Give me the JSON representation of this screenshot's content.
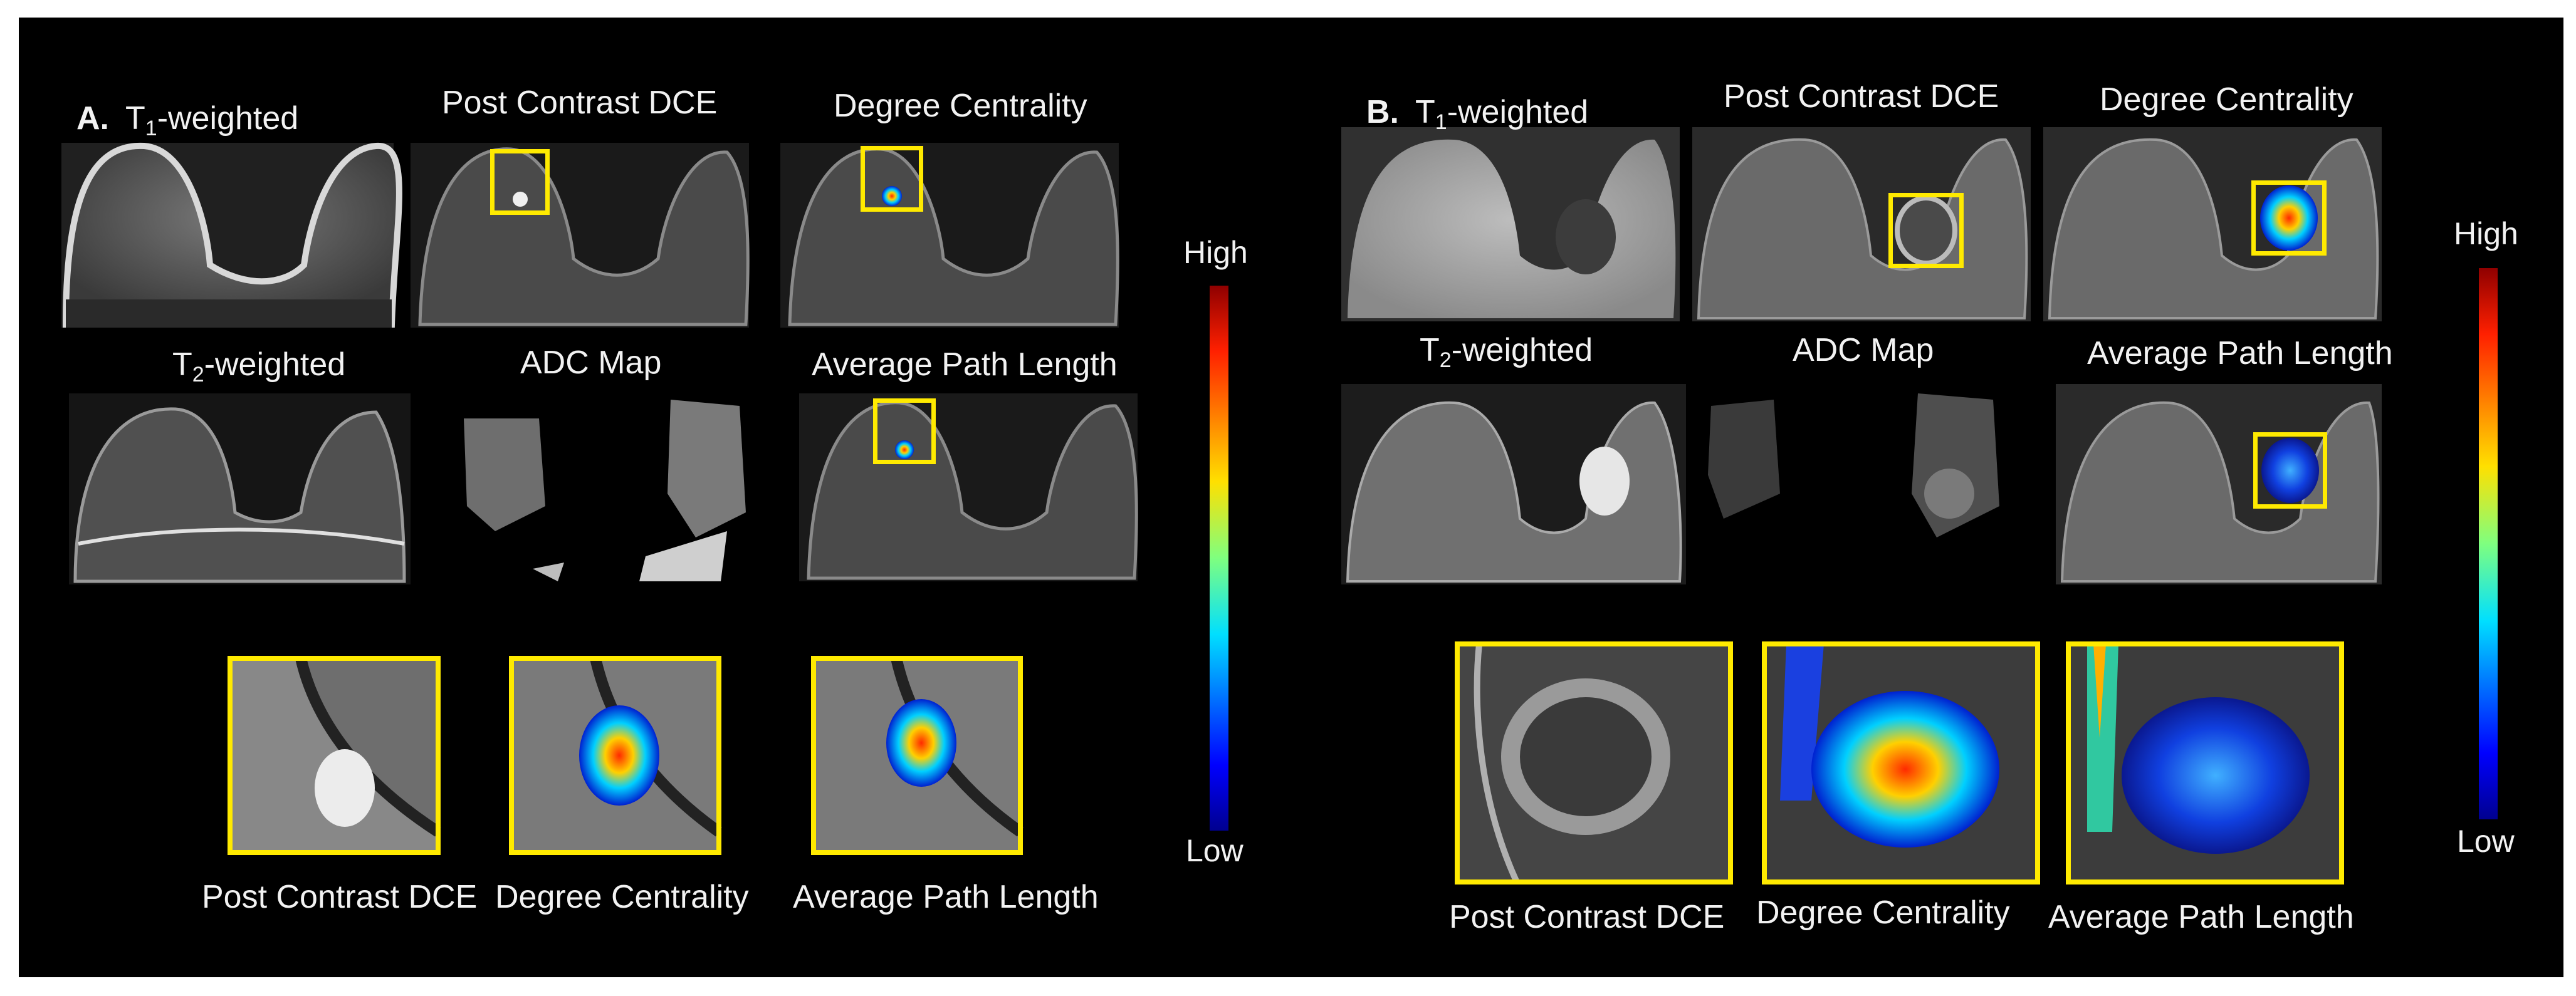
{
  "panel_a": {
    "letter": "A.",
    "t1_prefix": "T",
    "t1_sub": "1",
    "t1_suffix": "-weighted",
    "post_contrast": "Post Contrast DCE",
    "degree_centrality": "Degree Centrality",
    "t2_prefix": "T",
    "t2_sub": "2",
    "t2_suffix": "-weighted",
    "adc_map": "ADC Map",
    "average_path_length": "Average Path Length",
    "zoom_labels": [
      "Post Contrast DCE",
      "Degree Centrality",
      "Average Path Length"
    ],
    "colorbar": {
      "high": "High",
      "low": "Low"
    }
  },
  "panel_b": {
    "letter": "B.",
    "t1_prefix": "T",
    "t1_sub": "1",
    "t1_suffix": "-weighted",
    "post_contrast": "Post Contrast DCE",
    "degree_centrality": "Degree Centrality",
    "t2_prefix": "T",
    "t2_sub": "2",
    "t2_suffix": "-weighted",
    "adc_map": "ADC Map",
    "average_path_length": "Average Path Length",
    "zoom_labels": [
      "Post Contrast DCE",
      "Degree Centrality",
      "Average Path Length"
    ],
    "colorbar": {
      "high": "High",
      "low": "Low"
    }
  },
  "colors": {
    "background": "#000000",
    "text": "#f2f2f2",
    "roi_box": "#ffea00",
    "colormap": [
      "#00008f",
      "#0050ff",
      "#00dfff",
      "#7fff7f",
      "#ffe000",
      "#ff5000",
      "#8f0000"
    ]
  }
}
